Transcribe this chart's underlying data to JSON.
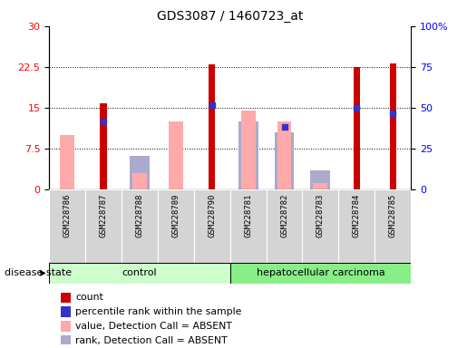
{
  "title": "GDS3087 / 1460723_at",
  "samples": [
    "GSM228786",
    "GSM228787",
    "GSM228788",
    "GSM228789",
    "GSM228790",
    "GSM228781",
    "GSM228782",
    "GSM228783",
    "GSM228784",
    "GSM228785"
  ],
  "groups": [
    "control",
    "control",
    "control",
    "control",
    "control",
    "hepatocellular carcinoma",
    "hepatocellular carcinoma",
    "hepatocellular carcinoma",
    "hepatocellular carcinoma",
    "hepatocellular carcinoma"
  ],
  "count_values": [
    0,
    15.8,
    0,
    0,
    23.0,
    0,
    0,
    0,
    22.5,
    23.2
  ],
  "percentile_values": [
    0,
    12.5,
    0,
    0,
    15.5,
    0,
    11.5,
    0,
    15.0,
    14.0
  ],
  "absent_value_values": [
    10.0,
    0,
    3.0,
    12.5,
    0,
    14.5,
    12.5,
    1.2,
    0,
    0
  ],
  "absent_rank_values": [
    0,
    0,
    6.2,
    0,
    0,
    12.5,
    10.5,
    3.5,
    0,
    0
  ],
  "ylim_left": [
    0,
    30
  ],
  "ylim_right": [
    0,
    100
  ],
  "yticks_left": [
    0,
    7.5,
    15,
    22.5,
    30
  ],
  "ytick_labels_left": [
    "0",
    "7.5",
    "15",
    "22.5",
    "30"
  ],
  "yticks_right": [
    0,
    25,
    50,
    75,
    100
  ],
  "ytick_labels_right": [
    "0",
    "25",
    "50",
    "75",
    "100%"
  ],
  "color_count": "#cc0000",
  "color_percentile": "#3333cc",
  "color_absent_value": "#ffaaaa",
  "color_absent_rank": "#aaaacc",
  "color_control": "#ccffcc",
  "color_hcc": "#88ee88",
  "color_xbg": "#d4d4d4",
  "legend_items": [
    {
      "label": "count",
      "color": "#cc0000"
    },
    {
      "label": "percentile rank within the sample",
      "color": "#3333cc"
    },
    {
      "label": "value, Detection Call = ABSENT",
      "color": "#ffaaaa"
    },
    {
      "label": "rank, Detection Call = ABSENT",
      "color": "#aaaacc"
    }
  ],
  "n_control": 5,
  "n_hcc": 5
}
